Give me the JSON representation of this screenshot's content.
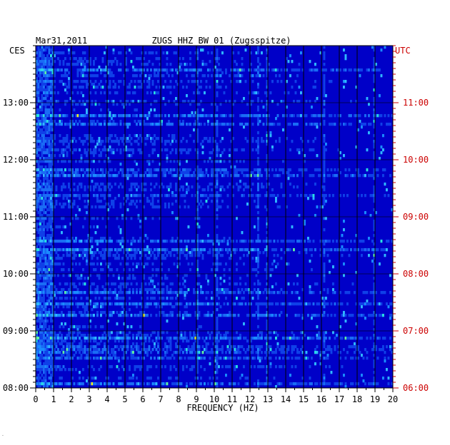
{
  "header": {
    "date": "Mar31,2011",
    "station": "ZUGS HHZ BW 01 (Zugsspitze)"
  },
  "chart_data": {
    "type": "heatmap",
    "title": "ZUGS HHZ BW 01 (Zugsspitze)",
    "date": "Mar31,2011",
    "xlabel": "FREQUENCY (HZ)",
    "xlim": [
      0,
      20
    ],
    "x_ticks": [
      "0",
      "1",
      "2",
      "3",
      "4",
      "5",
      "6",
      "7",
      "8",
      "9",
      "10",
      "11",
      "12",
      "13",
      "14",
      "15",
      "16",
      "17",
      "18",
      "19",
      "20"
    ],
    "left_axis": {
      "label": "CES",
      "ticks": [
        "13:00",
        "12:00",
        "11:00",
        "10:00",
        "09:00",
        "08:00"
      ]
    },
    "right_axis": {
      "label": "UTC",
      "ticks": [
        "11:00",
        "10:00",
        "09:00",
        "08:00",
        "07:00",
        "06:00"
      ]
    },
    "time_range_utc": [
      "06:00",
      "11:55"
    ],
    "colors": {
      "background": "#0000c8",
      "low": "#0a1fd0",
      "mid": "#1a8cff",
      "high": "#28e0e0",
      "peak": "#f0f020",
      "right_axis_color": "#cc0000",
      "grid": "#000000"
    },
    "notable_frequency_lines_hz": [
      9.0,
      10.1,
      12.4,
      12.9,
      16.1,
      18.9
    ]
  },
  "footer": {
    "mark": "·"
  }
}
